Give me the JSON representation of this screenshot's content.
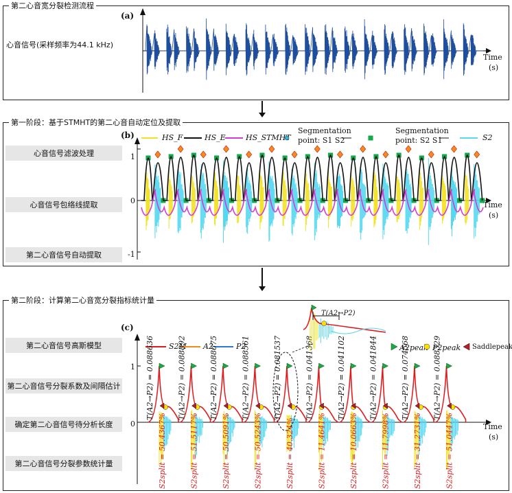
{
  "panel_a": {
    "title": "第二心音宽分裂检测流程",
    "label": "(a)",
    "signal_label": "心音信号(采样频率为44.1 kHz)",
    "axis": {
      "time": "Time",
      "unit": "(s)"
    }
  },
  "panel_b": {
    "title": "第一阶段：基于STMHT的第二心音自动定位及提取",
    "label": "(b)",
    "steps": [
      "心音信号滤波处理",
      "心音信号包络线提取",
      "第二心音信号自动提取"
    ],
    "ticks": [
      "1",
      "0",
      "-1"
    ],
    "legend": {
      "hs_f": "HS_F",
      "hs_e": "HS_E",
      "hs_stmht": "HS_STMHT",
      "seg1_title": "Segmentation",
      "seg1_points": "point: S1  S2",
      "seg2_title": "Segmentation",
      "seg2_points": "point: S2  S1",
      "s2": "S2"
    },
    "axis": {
      "time": "Time",
      "unit": "(s)"
    }
  },
  "panel_c": {
    "title": "第二阶段：计算第二心音宽分裂指标统计量",
    "label": "(c)",
    "steps": [
      "第二心音信号高斯模型",
      "第二心音信号分裂系数及间隔估计",
      "确定第二心音信号待分析长度",
      "第二心音信号分裂参数统计量"
    ],
    "ticks": [
      "1",
      "0"
    ],
    "legend": {
      "s2m": "S2M",
      "a2": "A2",
      "p2": "P2",
      "a2peak": "A2peak",
      "p2peak": "P2peak",
      "saddle": "Saddlepeak"
    },
    "interval_label": "T(A2→P2)",
    "intervals": [
      "0.088636",
      "0.088892",
      "0.088675",
      "0.088561",
      "0.081537",
      "0.041368",
      "0.041102",
      "0.041844",
      "0.074568",
      "0.088329"
    ],
    "split_percents": [
      "50.4367%",
      "51.5117%",
      "50.5091%",
      "50.5243%",
      "40.324%",
      "11.4641%",
      "10.0663%",
      "11.7998%",
      "31.2731%",
      "51.0447%"
    ],
    "split_label": "S2split",
    "axis": {
      "time": "Time",
      "unit": "(s)"
    }
  },
  "colors": {
    "signal": "#1f4e9c",
    "yellow": "#f2e224",
    "cyan": "#55d8f0",
    "magenta": "#d43ad4",
    "red": "#e31a1c",
    "green": "#1fa64b",
    "orange": "#f28c1c",
    "darkred": "#b0202a",
    "blue": "#2b7bd6"
  }
}
